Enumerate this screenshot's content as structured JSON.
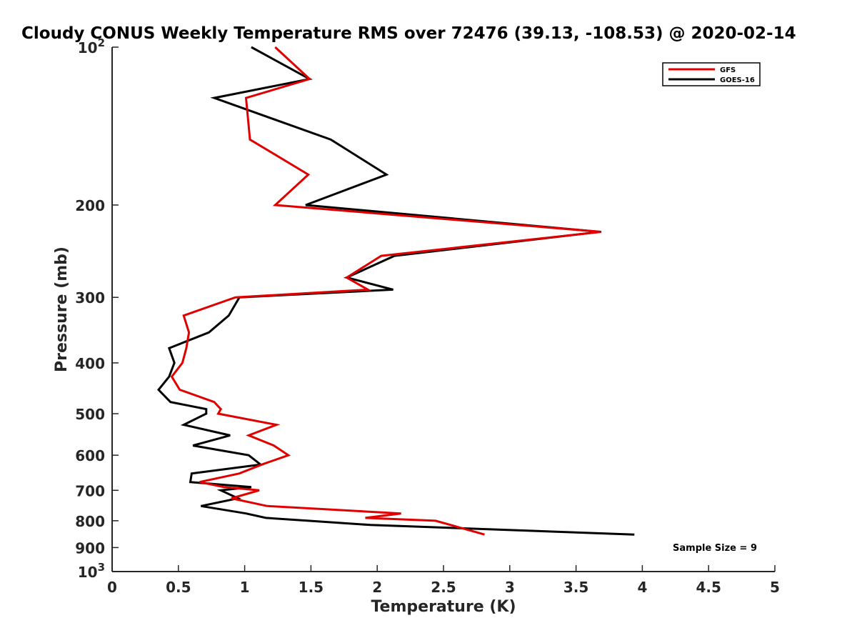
{
  "chart_data": {
    "type": "line",
    "title": "Cloudy CONUS Weekly Temperature RMS over 72476 (39.13, -108.53) @ 2020-02-14",
    "xlabel": "Temperature (K)",
    "ylabel": "Pressure (mb)",
    "xlim": [
      0,
      5
    ],
    "ylim": [
      100,
      1000
    ],
    "y_scale": "log",
    "y_reversed": true,
    "grid": false,
    "legend_placement": "top-right",
    "x_ticks": [
      0,
      0.5,
      1,
      1.5,
      2,
      2.5,
      3,
      3.5,
      4,
      4.5,
      5
    ],
    "x_tick_labels": [
      "0",
      "0.5",
      "1",
      "1.5",
      "2",
      "2.5",
      "3",
      "3.5",
      "4",
      "4.5",
      "5"
    ],
    "y_ticks": [
      100,
      200,
      300,
      400,
      500,
      600,
      700,
      800,
      900,
      1000
    ],
    "y_tick_labels": [
      {
        "base": "10",
        "exp": "2"
      },
      {
        "base": "200",
        "exp": ""
      },
      {
        "base": "300",
        "exp": ""
      },
      {
        "base": "400",
        "exp": ""
      },
      {
        "base": "500",
        "exp": ""
      },
      {
        "base": "600",
        "exp": ""
      },
      {
        "base": "700",
        "exp": ""
      },
      {
        "base": "800",
        "exp": ""
      },
      {
        "base": "900",
        "exp": ""
      },
      {
        "base": "10",
        "exp": "3"
      }
    ],
    "series": [
      {
        "name": "GFS",
        "color": "#e00000",
        "points": [
          [
            1.23,
            100
          ],
          [
            1.49,
            115
          ],
          [
            1.01,
            125
          ],
          [
            1.04,
            150
          ],
          [
            1.48,
            175
          ],
          [
            1.23,
            200
          ],
          [
            3.69,
            225
          ],
          [
            2.03,
            250
          ],
          [
            1.77,
            275
          ],
          [
            1.93,
            290
          ],
          [
            0.93,
            300
          ],
          [
            0.54,
            325
          ],
          [
            0.58,
            350
          ],
          [
            0.56,
            375
          ],
          [
            0.53,
            400
          ],
          [
            0.45,
            425
          ],
          [
            0.51,
            450
          ],
          [
            0.77,
            475
          ],
          [
            0.82,
            490
          ],
          [
            0.8,
            500
          ],
          [
            1.24,
            525
          ],
          [
            1.03,
            550
          ],
          [
            1.22,
            575
          ],
          [
            1.33,
            600
          ],
          [
            1.13,
            625
          ],
          [
            0.96,
            650
          ],
          [
            0.66,
            675
          ],
          [
            0.84,
            690
          ],
          [
            1.11,
            700
          ],
          [
            0.9,
            725
          ],
          [
            1.17,
            750
          ],
          [
            2.18,
            775
          ],
          [
            1.91,
            790
          ],
          [
            2.44,
            800
          ],
          [
            2.81,
            850
          ]
        ]
      },
      {
        "name": "GOES-16",
        "color": "#000000",
        "points": [
          [
            1.05,
            100
          ],
          [
            1.49,
            115
          ],
          [
            0.77,
            125
          ],
          [
            1.65,
            150
          ],
          [
            2.07,
            175
          ],
          [
            1.46,
            200
          ],
          [
            3.68,
            225
          ],
          [
            2.13,
            250
          ],
          [
            1.77,
            275
          ],
          [
            2.12,
            290
          ],
          [
            0.96,
            300
          ],
          [
            0.88,
            325
          ],
          [
            0.73,
            350
          ],
          [
            0.43,
            375
          ],
          [
            0.47,
            400
          ],
          [
            0.43,
            425
          ],
          [
            0.35,
            450
          ],
          [
            0.44,
            475
          ],
          [
            0.71,
            490
          ],
          [
            0.71,
            500
          ],
          [
            0.54,
            525
          ],
          [
            0.89,
            550
          ],
          [
            0.61,
            575
          ],
          [
            1.03,
            600
          ],
          [
            1.12,
            625
          ],
          [
            0.6,
            650
          ],
          [
            0.59,
            675
          ],
          [
            1.05,
            690
          ],
          [
            0.82,
            700
          ],
          [
            0.95,
            725
          ],
          [
            0.67,
            750
          ],
          [
            1.01,
            775
          ],
          [
            1.16,
            790
          ],
          [
            1.48,
            800
          ],
          [
            1.95,
            815
          ],
          [
            3.94,
            850
          ]
        ]
      }
    ],
    "annotations": [
      "Sample Size = 9"
    ]
  }
}
